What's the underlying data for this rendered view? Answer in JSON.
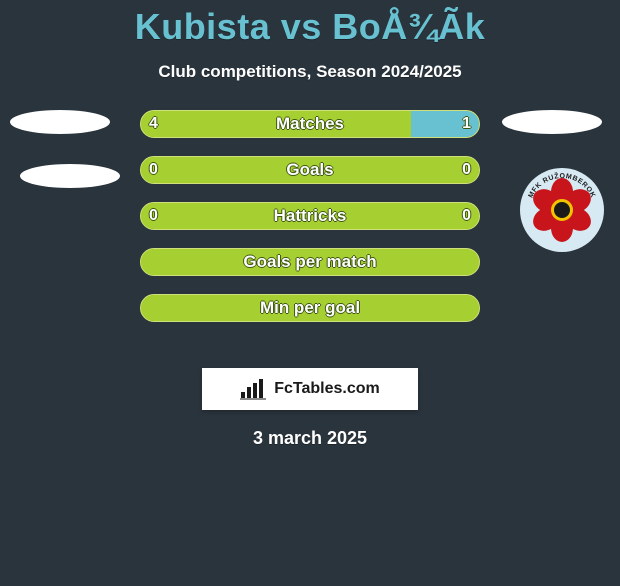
{
  "header": {
    "title": "Kubista vs BoÅ¾Ãk",
    "title_color": "#68c1d1",
    "title_fontsize": 36,
    "subtitle": "Club competitions, Season 2024/2025",
    "subtitle_color": "#ffffff",
    "subtitle_fontsize": 17
  },
  "background_color": "#2a343d",
  "player_left": {
    "name": "Kubista"
  },
  "player_right": {
    "name": "BoÅ¾Ãk",
    "club": "MFK RUŽOMBEROK"
  },
  "bars": {
    "track_width": 340,
    "track_height": 28,
    "border_radius": 14,
    "fill_color": "#a6cf31",
    "border_color": "#cfe07a",
    "accent_color_right": "#68c1d1",
    "label_color": "#ffffff",
    "label_outline": "#3c5510",
    "rows": [
      {
        "label": "Matches",
        "left_val": "4",
        "right_val": "1",
        "left_pct": 80,
        "right_pct": 20,
        "right_accent": true
      },
      {
        "label": "Goals",
        "left_val": "0",
        "right_val": "0",
        "left_pct": 100,
        "right_pct": 0,
        "right_accent": false
      },
      {
        "label": "Hattricks",
        "left_val": "0",
        "right_val": "0",
        "left_pct": 100,
        "right_pct": 0,
        "right_accent": false
      },
      {
        "label": "Goals per match",
        "left_val": "",
        "right_val": "",
        "left_pct": 100,
        "right_pct": 0,
        "right_accent": false
      },
      {
        "label": "Min per goal",
        "left_val": "",
        "right_val": "",
        "left_pct": 100,
        "right_pct": 0,
        "right_accent": false
      }
    ]
  },
  "club_logo": {
    "bg": "#d7eaf4",
    "petal_color": "#c8151c",
    "center_color": "#1a1a1a",
    "center_ring": "#f2c400",
    "arc_color": "#1a1a1a",
    "arc_text": "MFK RUŽOMBEROK"
  },
  "branding": {
    "text": "FcTables.com",
    "bg": "#ffffff",
    "icon_color": "#1a1a1a"
  },
  "footer": {
    "date": "3 march 2025",
    "date_color": "#ffffff",
    "date_fontsize": 18
  }
}
